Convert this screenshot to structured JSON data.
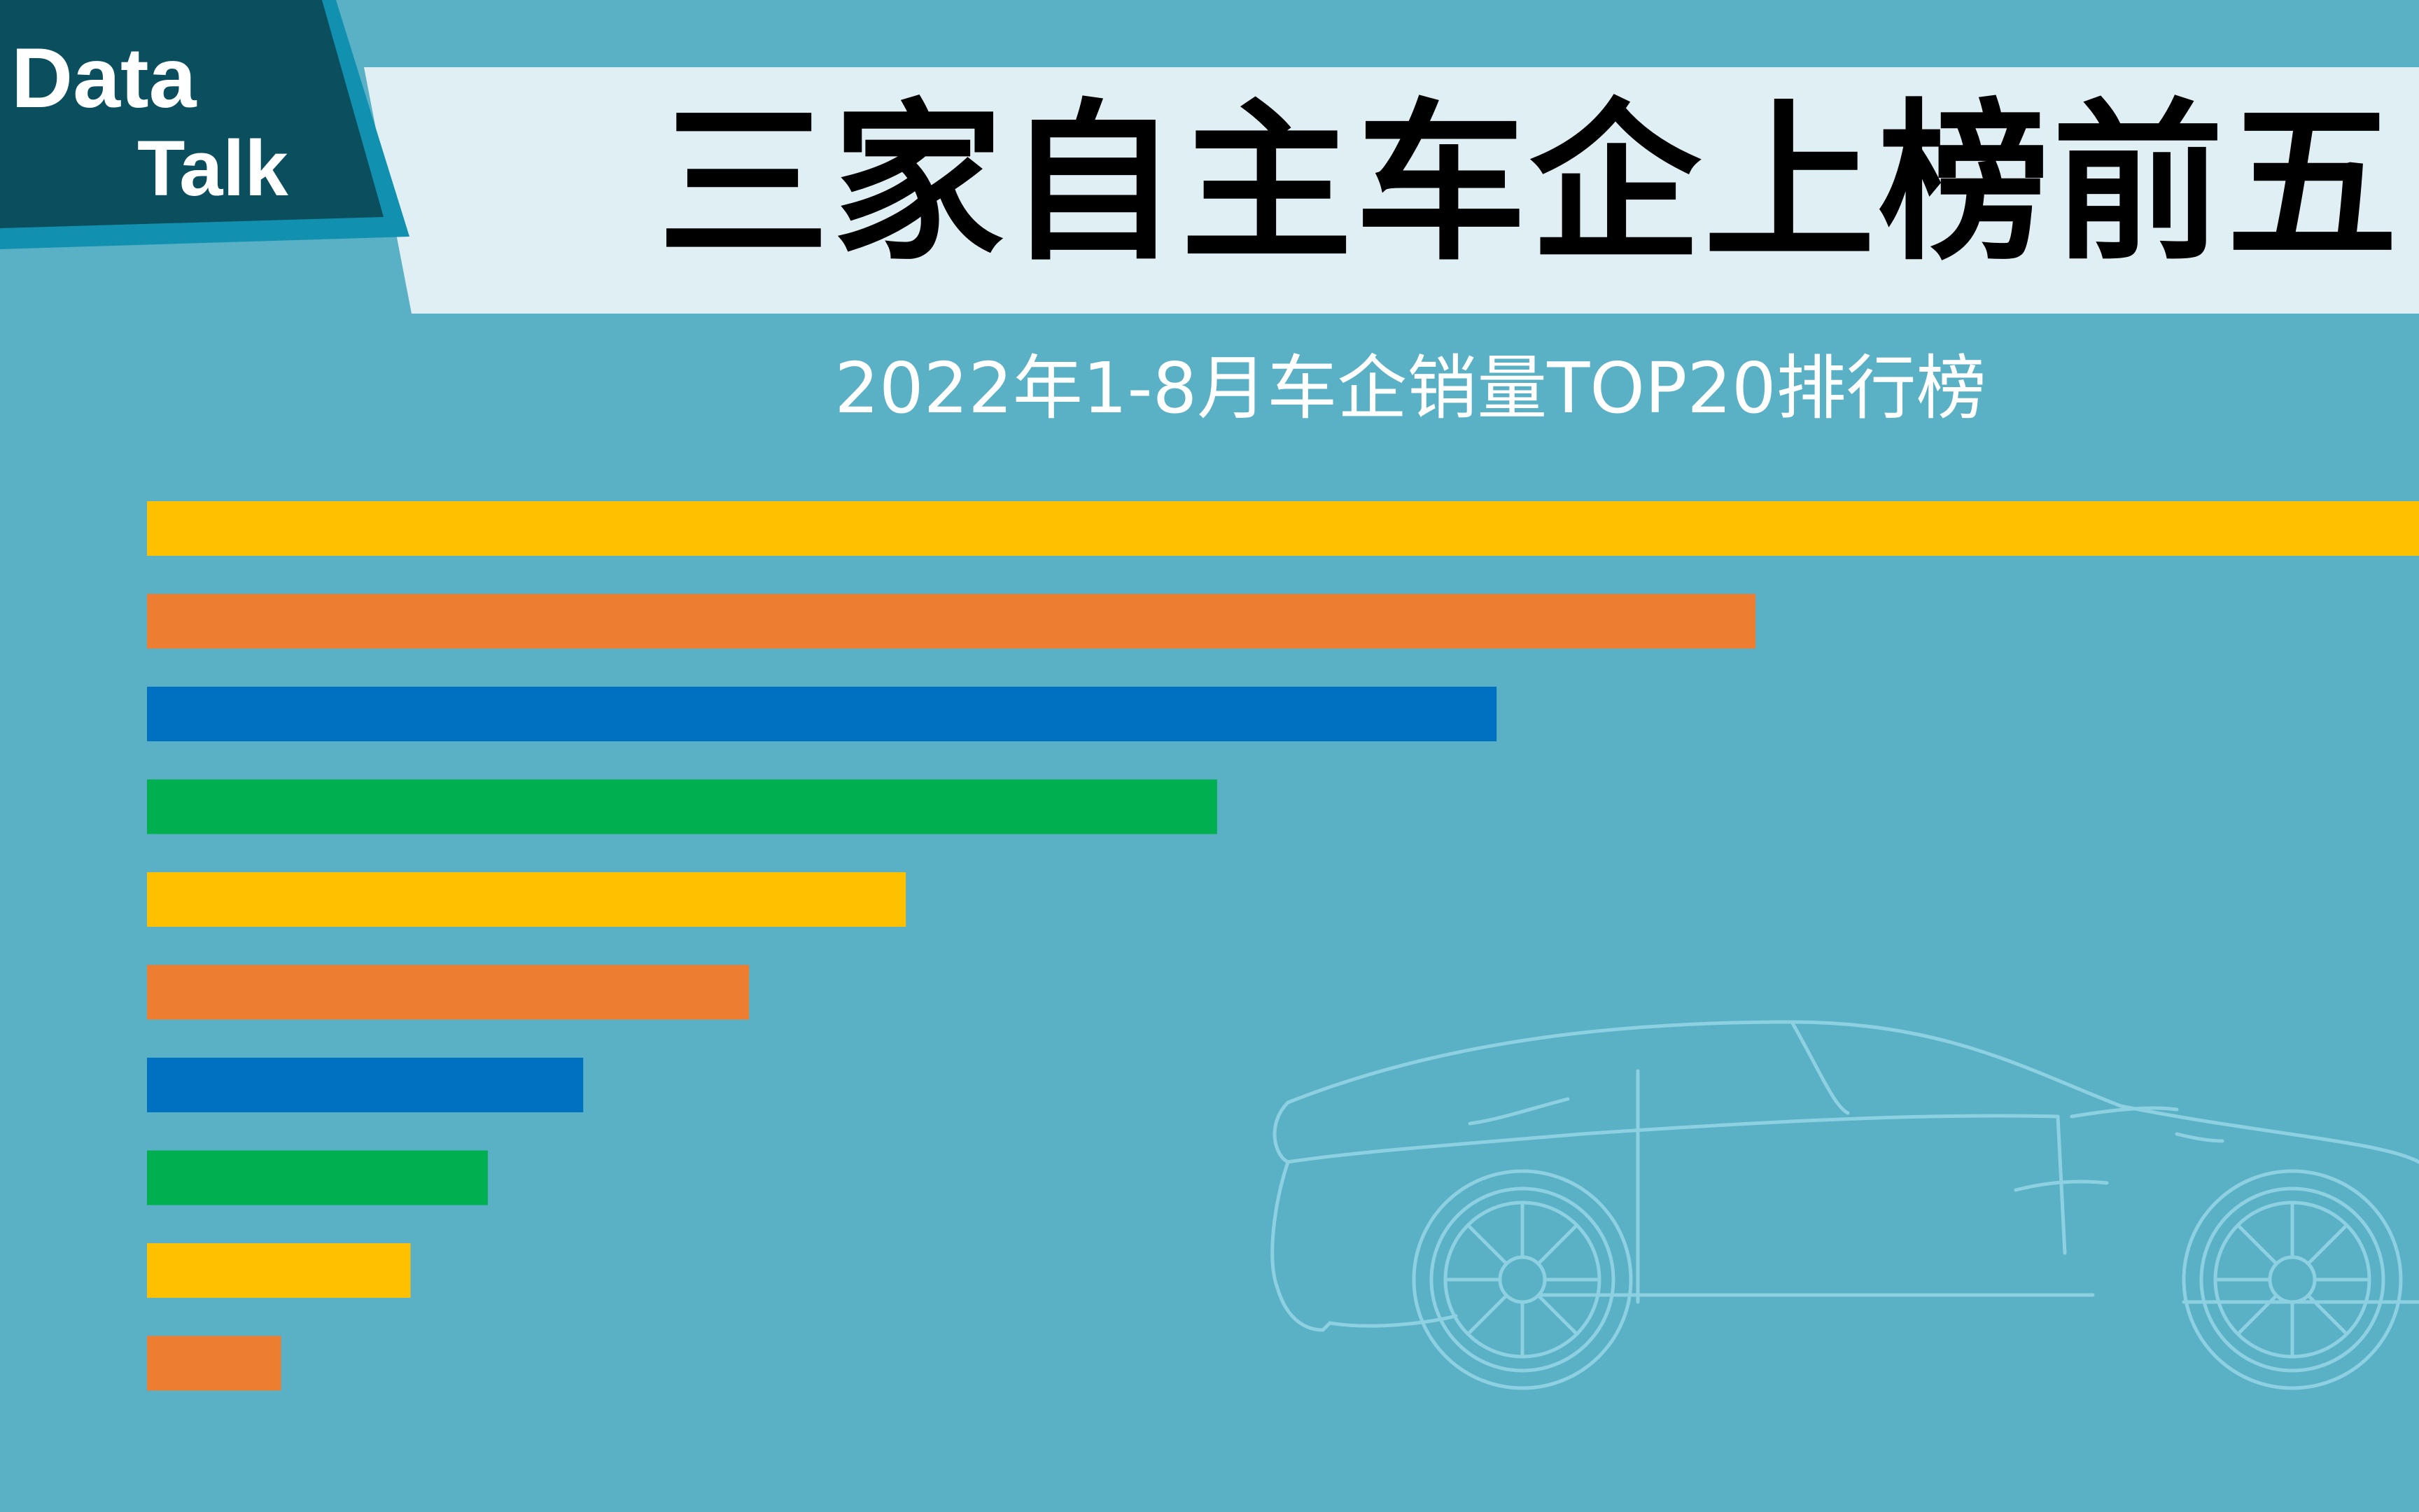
{
  "logo": {
    "line1": "Data",
    "line2": "Talk"
  },
  "title": "三家自主车企上榜前五",
  "subtitle": "2022年1-8月车企销量TOP20排行榜",
  "colors": {
    "background": "#5ab0c4",
    "logo_dark": "#0b4f5f",
    "logo_border": "#1290b0",
    "title_band": "#e0eff4",
    "bar_palette": [
      "#ffc000",
      "#ed7d31",
      "#0070c0",
      "#00b050"
    ]
  },
  "decoration": {
    "car_icon": "car-outline-sketch"
  },
  "chart_data": {
    "type": "bar",
    "orientation": "horizontal",
    "title": "",
    "xlabel": "",
    "ylabel": "",
    "grid": false,
    "legend": "none",
    "xlim": [
      0,
      100
    ],
    "categories": [
      "",
      "",
      "",
      "",
      "",
      "",
      "",
      "",
      "",
      ""
    ],
    "values": [
      100,
      70.8,
      59.4,
      47.1,
      33.4,
      26.5,
      19.2,
      15.0,
      11.6,
      5.9
    ],
    "colors": [
      "#ffc000",
      "#ed7d31",
      "#0070c0",
      "#00b050",
      "#ffc000",
      "#ed7d31",
      "#0070c0",
      "#00b050",
      "#ffc000",
      "#ed7d31"
    ]
  }
}
